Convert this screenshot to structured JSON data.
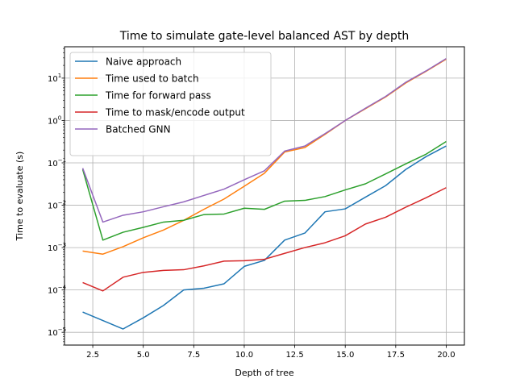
{
  "chart_data": {
    "type": "line",
    "title": "Time to simulate gate-level balanced AST by depth",
    "xlabel": "Depth of tree",
    "ylabel": "Time to evaluate (s)",
    "xlim": [
      1.1,
      20.9
    ],
    "ylim": [
      5e-06,
      55
    ],
    "yscale": "log",
    "grid": true,
    "legend_position": "top-left",
    "x_ticks": [
      "2.5",
      "5.0",
      "7.5",
      "10.0",
      "12.5",
      "15.0",
      "17.5",
      "20.0"
    ],
    "y_ticks": [
      {
        "base": "10",
        "exp": "−5"
      },
      {
        "base": "10",
        "exp": "−4"
      },
      {
        "base": "10",
        "exp": "−3"
      },
      {
        "base": "10",
        "exp": "−2"
      },
      {
        "base": "10",
        "exp": "−1"
      },
      {
        "base": "10",
        "exp": "0"
      },
      {
        "base": "10",
        "exp": "1"
      }
    ],
    "x": [
      2,
      3,
      4,
      5,
      6,
      7,
      8,
      9,
      10,
      11,
      12,
      13,
      14,
      15,
      16,
      17,
      18,
      19,
      20
    ],
    "series": [
      {
        "name": "Naive approach",
        "color": "#1f77b4",
        "values": [
          3e-05,
          1.9e-05,
          1.2e-05,
          2.2e-05,
          4.3e-05,
          0.0001,
          0.00011,
          0.00014,
          0.00036,
          0.0005,
          0.0015,
          0.0022,
          0.007,
          0.0082,
          0.0155,
          0.029,
          0.07,
          0.14,
          0.25
        ]
      },
      {
        "name": "Time used to batch",
        "color": "#ff7f0e",
        "values": [
          0.00083,
          0.0007,
          0.00105,
          0.0017,
          0.0026,
          0.0044,
          0.008,
          0.014,
          0.028,
          0.057,
          0.18,
          0.23,
          0.47,
          1.0,
          1.9,
          3.6,
          7.7,
          14.5,
          28.0
        ]
      },
      {
        "name": "Time for forward pass",
        "color": "#2ca02c",
        "values": [
          0.07,
          0.0015,
          0.0023,
          0.003,
          0.004,
          0.0044,
          0.006,
          0.0062,
          0.0085,
          0.008,
          0.0125,
          0.013,
          0.016,
          0.023,
          0.032,
          0.055,
          0.095,
          0.16,
          0.32
        ]
      },
      {
        "name": "Time to mask/encode output",
        "color": "#d62728",
        "values": [
          0.00015,
          9.5e-05,
          0.0002,
          0.00026,
          0.00029,
          0.0003,
          0.00037,
          0.00048,
          0.00049,
          0.00053,
          0.00073,
          0.001,
          0.0013,
          0.0019,
          0.0036,
          0.0052,
          0.009,
          0.015,
          0.026
        ]
      },
      {
        "name": "Batched GNN",
        "color": "#9467bd",
        "values": [
          0.075,
          0.004,
          0.0058,
          0.007,
          0.0092,
          0.012,
          0.017,
          0.024,
          0.04,
          0.065,
          0.19,
          0.25,
          0.49,
          1.0,
          1.95,
          3.7,
          8.0,
          14.8,
          29.0
        ]
      }
    ]
  }
}
